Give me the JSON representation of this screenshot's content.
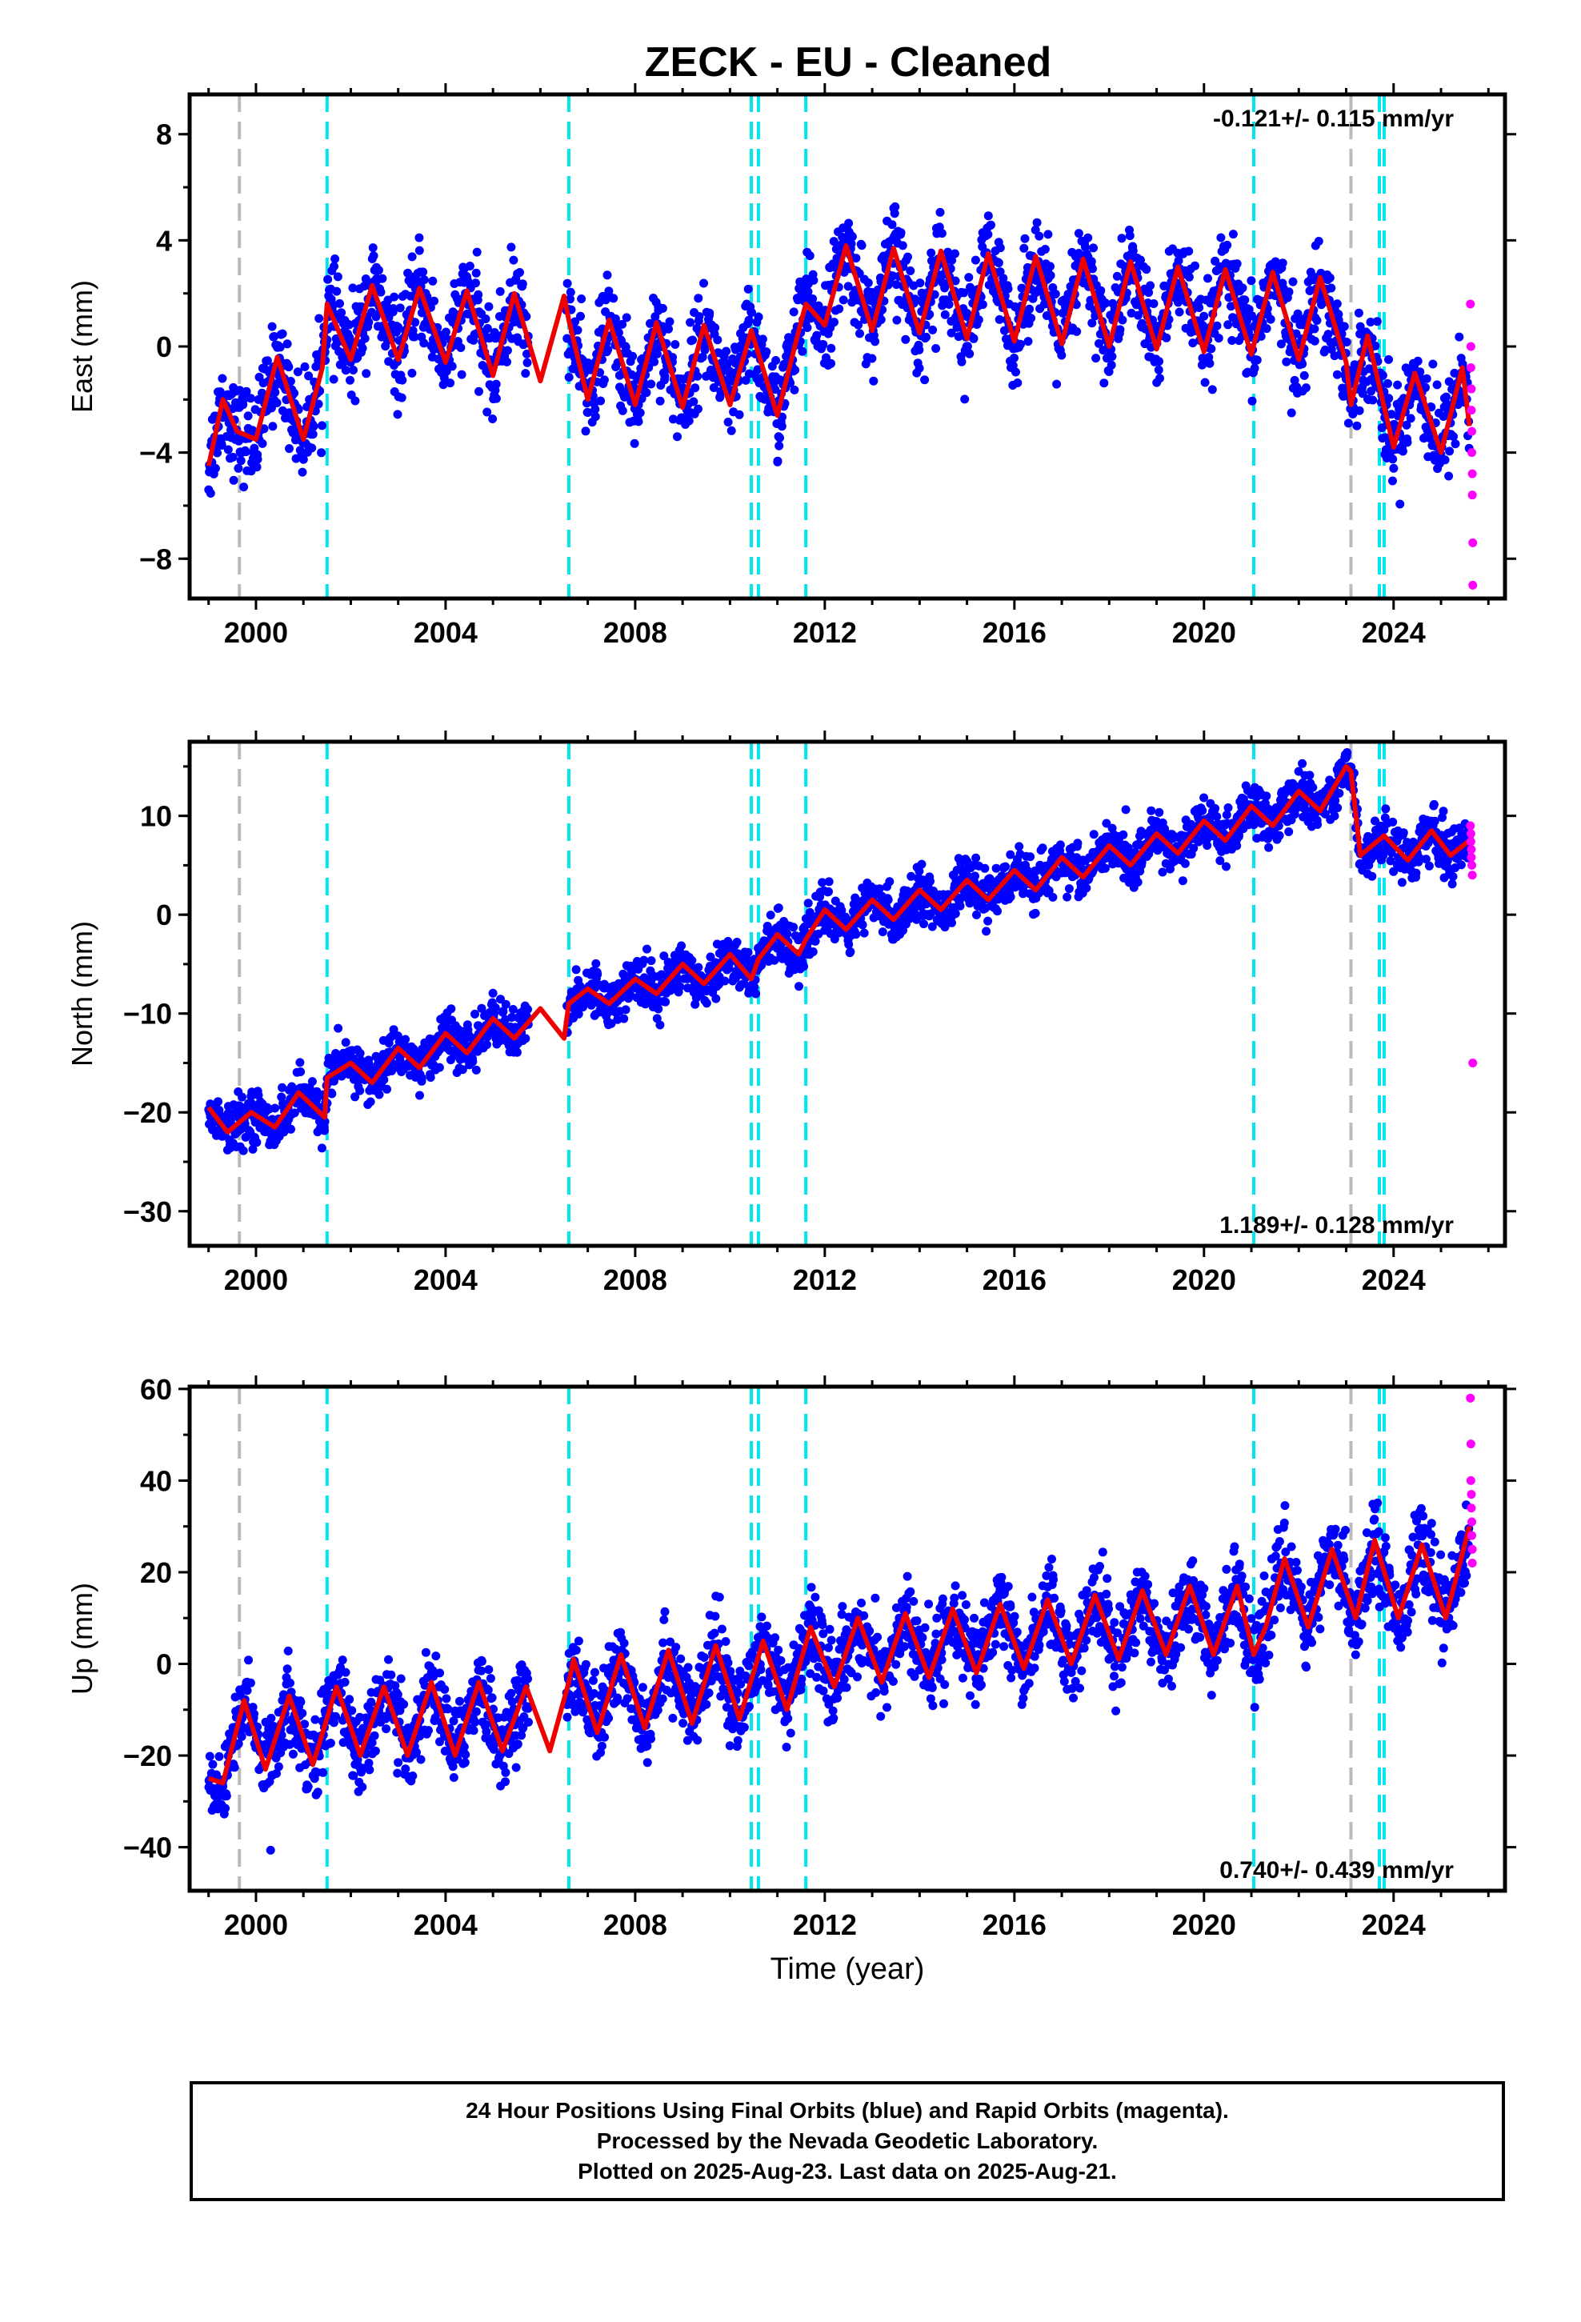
{
  "title": "ZECK  - EU - Cleaned",
  "colors": {
    "final_orbits": "#0000ff",
    "rapid_orbits": "#ff00ff",
    "model": "#ee0000",
    "equipment_change": "#00e5ee",
    "earthquake": "#bbbbbb"
  },
  "event_lines": {
    "equipment_changes": [
      2001.5,
      2006.6,
      2010.45,
      2010.6,
      2011.6,
      2021.05,
      2023.7,
      2023.8
    ],
    "earthquakes": [
      1999.65,
      2023.1
    ]
  },
  "footer": {
    "line1": "24 Hour Positions Using Final Orbits (blue) and Rapid Orbits (magenta).",
    "line2": "Processed by the Nevada Geodetic Laboratory.",
    "line3": "Plotted on 2025-Aug-23. Last data on 2025-Aug-21."
  },
  "chart_data": [
    {
      "type": "scatter",
      "component": "east",
      "ylabel": "East (mm)",
      "xlabel": "",
      "xlim": [
        1998.6,
        2026.35
      ],
      "ylim": [
        -9.5,
        9.5
      ],
      "xticks": [
        2000,
        2004,
        2008,
        2012,
        2016,
        2020,
        2024
      ],
      "yticks": [
        -8,
        -4,
        0,
        4,
        8
      ],
      "velocity": "-0.121+/- 0.115 mm/yr",
      "velocity_position": "top-right",
      "grid": false,
      "model_series": [
        {
          "x": 1999.0,
          "y": -4.5
        },
        {
          "x": 1999.3,
          "y": -2.0
        },
        {
          "x": 1999.6,
          "y": -3.2
        },
        {
          "x": 2000.0,
          "y": -3.5
        },
        {
          "x": 2000.45,
          "y": -0.4
        },
        {
          "x": 2001.0,
          "y": -3.5
        },
        {
          "x": 2001.4,
          "y": -0.8
        },
        {
          "x": 2001.5,
          "y": 1.6
        },
        {
          "x": 2002.0,
          "y": -0.5
        },
        {
          "x": 2002.45,
          "y": 2.3
        },
        {
          "x": 2003.0,
          "y": -0.5
        },
        {
          "x": 2003.45,
          "y": 2.2
        },
        {
          "x": 2004.0,
          "y": -0.6
        },
        {
          "x": 2004.45,
          "y": 2.1
        },
        {
          "x": 2005.0,
          "y": -1.1
        },
        {
          "x": 2005.45,
          "y": 2.0
        },
        {
          "x": 2006.0,
          "y": -1.3
        },
        {
          "x": 2006.5,
          "y": 1.9
        },
        {
          "x": 2006.6,
          "y": 1.0
        },
        {
          "x": 2007.0,
          "y": -2.0
        },
        {
          "x": 2007.45,
          "y": 1.0
        },
        {
          "x": 2008.0,
          "y": -2.2
        },
        {
          "x": 2008.45,
          "y": 0.9
        },
        {
          "x": 2009.0,
          "y": -2.3
        },
        {
          "x": 2009.45,
          "y": 0.8
        },
        {
          "x": 2010.0,
          "y": -2.2
        },
        {
          "x": 2010.45,
          "y": 0.6
        },
        {
          "x": 2011.0,
          "y": -2.6
        },
        {
          "x": 2011.45,
          "y": 0.6
        },
        {
          "x": 2011.6,
          "y": 1.6
        },
        {
          "x": 2012.0,
          "y": 0.8
        },
        {
          "x": 2012.45,
          "y": 3.8
        },
        {
          "x": 2013.0,
          "y": 0.6
        },
        {
          "x": 2013.45,
          "y": 3.7
        },
        {
          "x": 2014.0,
          "y": 0.5
        },
        {
          "x": 2014.45,
          "y": 3.6
        },
        {
          "x": 2015.0,
          "y": 0.3
        },
        {
          "x": 2015.45,
          "y": 3.5
        },
        {
          "x": 2016.0,
          "y": 0.2
        },
        {
          "x": 2016.45,
          "y": 3.4
        },
        {
          "x": 2017.0,
          "y": 0.1
        },
        {
          "x": 2017.45,
          "y": 3.3
        },
        {
          "x": 2018.0,
          "y": 0.0
        },
        {
          "x": 2018.45,
          "y": 3.2
        },
        {
          "x": 2019.0,
          "y": -0.1
        },
        {
          "x": 2019.45,
          "y": 3.0
        },
        {
          "x": 2020.0,
          "y": -0.2
        },
        {
          "x": 2020.45,
          "y": 2.9
        },
        {
          "x": 2021.0,
          "y": -0.3
        },
        {
          "x": 2021.45,
          "y": 2.8
        },
        {
          "x": 2022.0,
          "y": -0.5
        },
        {
          "x": 2022.45,
          "y": 2.6
        },
        {
          "x": 2023.0,
          "y": -0.6
        },
        {
          "x": 2023.1,
          "y": -2.2
        },
        {
          "x": 2023.45,
          "y": 0.4
        },
        {
          "x": 2024.0,
          "y": -3.8
        },
        {
          "x": 2024.45,
          "y": -1.0
        },
        {
          "x": 2025.0,
          "y": -4.0
        },
        {
          "x": 2025.45,
          "y": -0.8
        },
        {
          "x": 2025.6,
          "y": -3.0
        }
      ],
      "scatter_spread": 1.6,
      "rapid_points": [
        {
          "x": 2025.62,
          "y": 1.6
        },
        {
          "x": 2025.63,
          "y": 0.0
        },
        {
          "x": 2025.63,
          "y": -0.8
        },
        {
          "x": 2025.64,
          "y": -1.6
        },
        {
          "x": 2025.64,
          "y": -2.4
        },
        {
          "x": 2025.65,
          "y": -3.2
        },
        {
          "x": 2025.65,
          "y": -4.0
        },
        {
          "x": 2025.66,
          "y": -4.8
        },
        {
          "x": 2025.66,
          "y": -5.6
        },
        {
          "x": 2025.67,
          "y": -7.4
        },
        {
          "x": 2025.67,
          "y": -9.0
        }
      ]
    },
    {
      "type": "scatter",
      "component": "north",
      "ylabel": "North (mm)",
      "xlabel": "",
      "xlim": [
        1998.6,
        2026.35
      ],
      "ylim": [
        -33.5,
        17.5
      ],
      "xticks": [
        2000,
        2004,
        2008,
        2012,
        2016,
        2020,
        2024
      ],
      "yticks": [
        -30,
        -20,
        -10,
        0,
        10
      ],
      "velocity": "1.189+/- 0.128 mm/yr",
      "velocity_position": "bottom-right",
      "grid": false,
      "model_series": [
        {
          "x": 1999.0,
          "y": -19.5
        },
        {
          "x": 1999.4,
          "y": -22.0
        },
        {
          "x": 1999.9,
          "y": -20.0
        },
        {
          "x": 2000.4,
          "y": -21.5
        },
        {
          "x": 2000.9,
          "y": -18.0
        },
        {
          "x": 2001.45,
          "y": -20.5
        },
        {
          "x": 2001.5,
          "y": -16.5
        },
        {
          "x": 2002.0,
          "y": -15.0
        },
        {
          "x": 2002.45,
          "y": -17.0
        },
        {
          "x": 2003.0,
          "y": -13.5
        },
        {
          "x": 2003.45,
          "y": -15.5
        },
        {
          "x": 2004.0,
          "y": -12.0
        },
        {
          "x": 2004.45,
          "y": -14.0
        },
        {
          "x": 2005.0,
          "y": -10.5
        },
        {
          "x": 2005.45,
          "y": -12.5
        },
        {
          "x": 2006.0,
          "y": -9.5
        },
        {
          "x": 2006.5,
          "y": -12.5
        },
        {
          "x": 2006.6,
          "y": -9.0
        },
        {
          "x": 2007.0,
          "y": -7.5
        },
        {
          "x": 2007.45,
          "y": -9.0
        },
        {
          "x": 2008.0,
          "y": -6.5
        },
        {
          "x": 2008.45,
          "y": -8.0
        },
        {
          "x": 2009.0,
          "y": -5.0
        },
        {
          "x": 2009.45,
          "y": -7.0
        },
        {
          "x": 2010.0,
          "y": -4.0
        },
        {
          "x": 2010.45,
          "y": -6.5
        },
        {
          "x": 2010.6,
          "y": -4.5
        },
        {
          "x": 2011.0,
          "y": -2.0
        },
        {
          "x": 2011.45,
          "y": -4.0
        },
        {
          "x": 2011.6,
          "y": -2.5
        },
        {
          "x": 2012.0,
          "y": 0.5
        },
        {
          "x": 2012.45,
          "y": -1.5
        },
        {
          "x": 2013.0,
          "y": 1.5
        },
        {
          "x": 2013.45,
          "y": -0.5
        },
        {
          "x": 2014.0,
          "y": 2.5
        },
        {
          "x": 2014.45,
          "y": 0.5
        },
        {
          "x": 2015.0,
          "y": 3.5
        },
        {
          "x": 2015.45,
          "y": 1.5
        },
        {
          "x": 2016.0,
          "y": 4.5
        },
        {
          "x": 2016.45,
          "y": 2.5
        },
        {
          "x": 2017.0,
          "y": 5.8
        },
        {
          "x": 2017.45,
          "y": 3.8
        },
        {
          "x": 2018.0,
          "y": 7.0
        },
        {
          "x": 2018.45,
          "y": 5.0
        },
        {
          "x": 2019.0,
          "y": 8.2
        },
        {
          "x": 2019.45,
          "y": 6.2
        },
        {
          "x": 2020.0,
          "y": 9.5
        },
        {
          "x": 2020.45,
          "y": 7.5
        },
        {
          "x": 2021.0,
          "y": 11.0
        },
        {
          "x": 2021.45,
          "y": 9.0
        },
        {
          "x": 2022.0,
          "y": 12.5
        },
        {
          "x": 2022.45,
          "y": 10.5
        },
        {
          "x": 2023.0,
          "y": 15.0
        },
        {
          "x": 2023.1,
          "y": 14.5
        },
        {
          "x": 2023.3,
          "y": 6.0
        },
        {
          "x": 2023.8,
          "y": 8.0
        },
        {
          "x": 2024.3,
          "y": 5.5
        },
        {
          "x": 2024.8,
          "y": 8.5
        },
        {
          "x": 2025.2,
          "y": 6.0
        },
        {
          "x": 2025.6,
          "y": 7.5
        }
      ],
      "scatter_spread": 2.2,
      "rapid_points": [
        {
          "x": 2025.62,
          "y": 9.0
        },
        {
          "x": 2025.63,
          "y": 8.2
        },
        {
          "x": 2025.63,
          "y": 7.4
        },
        {
          "x": 2025.64,
          "y": 6.6
        },
        {
          "x": 2025.64,
          "y": 5.8
        },
        {
          "x": 2025.65,
          "y": 5.0
        },
        {
          "x": 2025.66,
          "y": 4.0
        },
        {
          "x": 2025.67,
          "y": -15.0
        }
      ]
    },
    {
      "type": "scatter",
      "component": "up",
      "ylabel": "Up (mm)",
      "xlabel": "Time (year)",
      "xlim": [
        1998.6,
        2026.35
      ],
      "ylim": [
        -49.5,
        60.5
      ],
      "xticks": [
        2000,
        2004,
        2008,
        2012,
        2016,
        2020,
        2024
      ],
      "yticks": [
        -40,
        -20,
        0,
        20,
        40,
        60
      ],
      "velocity": "0.740+/- 0.439 mm/yr",
      "velocity_position": "bottom-right",
      "grid": false,
      "model_series": [
        {
          "x": 1999.0,
          "y": -25.0
        },
        {
          "x": 1999.3,
          "y": -26.0
        },
        {
          "x": 1999.75,
          "y": -8.0
        },
        {
          "x": 2000.2,
          "y": -23.0
        },
        {
          "x": 2000.7,
          "y": -7.0
        },
        {
          "x": 2001.2,
          "y": -22.0
        },
        {
          "x": 2001.7,
          "y": -5.0
        },
        {
          "x": 2002.2,
          "y": -20.0
        },
        {
          "x": 2002.7,
          "y": -5.0
        },
        {
          "x": 2003.2,
          "y": -20.0
        },
        {
          "x": 2003.7,
          "y": -4.0
        },
        {
          "x": 2004.2,
          "y": -20.0
        },
        {
          "x": 2004.7,
          "y": -4.0
        },
        {
          "x": 2005.2,
          "y": -19.0
        },
        {
          "x": 2005.7,
          "y": -5.0
        },
        {
          "x": 2006.2,
          "y": -19.0
        },
        {
          "x": 2006.6,
          "y": -4.0
        },
        {
          "x": 2006.7,
          "y": 1.0
        },
        {
          "x": 2007.2,
          "y": -15.0
        },
        {
          "x": 2007.7,
          "y": 2.0
        },
        {
          "x": 2008.2,
          "y": -14.0
        },
        {
          "x": 2008.7,
          "y": 3.0
        },
        {
          "x": 2009.2,
          "y": -13.0
        },
        {
          "x": 2009.7,
          "y": 4.0
        },
        {
          "x": 2010.2,
          "y": -12.0
        },
        {
          "x": 2010.7,
          "y": 5.0
        },
        {
          "x": 2011.2,
          "y": -10.0
        },
        {
          "x": 2011.7,
          "y": 8.0
        },
        {
          "x": 2012.2,
          "y": -5.0
        },
        {
          "x": 2012.7,
          "y": 10.0
        },
        {
          "x": 2013.2,
          "y": -4.0
        },
        {
          "x": 2013.7,
          "y": 11.0
        },
        {
          "x": 2014.2,
          "y": -3.0
        },
        {
          "x": 2014.7,
          "y": 12.0
        },
        {
          "x": 2015.2,
          "y": -2.0
        },
        {
          "x": 2015.7,
          "y": 13.0
        },
        {
          "x": 2016.2,
          "y": -1.0
        },
        {
          "x": 2016.7,
          "y": 14.0
        },
        {
          "x": 2017.2,
          "y": 0.0
        },
        {
          "x": 2017.7,
          "y": 15.0
        },
        {
          "x": 2018.2,
          "y": 1.0
        },
        {
          "x": 2018.7,
          "y": 16.0
        },
        {
          "x": 2019.2,
          "y": 2.0
        },
        {
          "x": 2019.7,
          "y": 17.0
        },
        {
          "x": 2020.2,
          "y": 2.0
        },
        {
          "x": 2020.7,
          "y": 17.0
        },
        {
          "x": 2021.05,
          "y": 2.0
        },
        {
          "x": 2021.3,
          "y": 8.0
        },
        {
          "x": 2021.7,
          "y": 23.0
        },
        {
          "x": 2022.2,
          "y": 8.0
        },
        {
          "x": 2022.7,
          "y": 25.0
        },
        {
          "x": 2023.2,
          "y": 10.0
        },
        {
          "x": 2023.6,
          "y": 27.0
        },
        {
          "x": 2024.1,
          "y": 10.0
        },
        {
          "x": 2024.6,
          "y": 26.0
        },
        {
          "x": 2025.1,
          "y": 10.0
        },
        {
          "x": 2025.6,
          "y": 30.0
        }
      ],
      "scatter_spread": 8.0,
      "rapid_points": [
        {
          "x": 2025.62,
          "y": 58.0
        },
        {
          "x": 2025.63,
          "y": 48.0
        },
        {
          "x": 2025.63,
          "y": 40.0
        },
        {
          "x": 2025.64,
          "y": 37.0
        },
        {
          "x": 2025.64,
          "y": 34.0
        },
        {
          "x": 2025.65,
          "y": 31.0
        },
        {
          "x": 2025.65,
          "y": 28.0
        },
        {
          "x": 2025.66,
          "y": 25.0
        },
        {
          "x": 2025.66,
          "y": 22.0
        }
      ]
    }
  ]
}
